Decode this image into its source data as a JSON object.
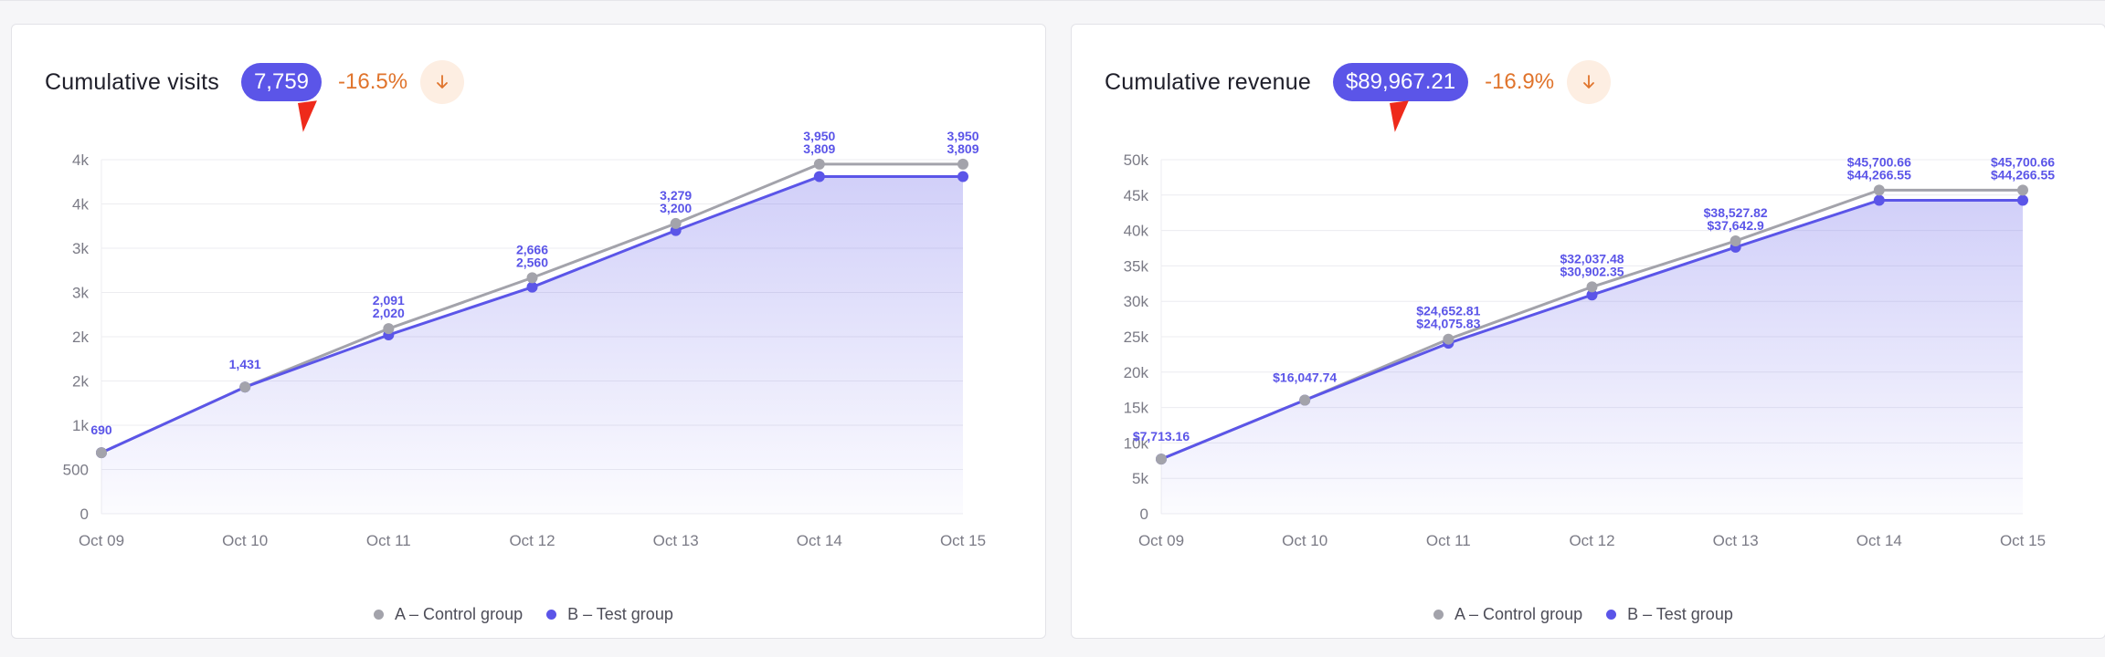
{
  "colors": {
    "control": "#a3a3ab",
    "test": "#5b55e8",
    "negative": "#e0742c",
    "pill": "#5b55e8"
  },
  "icons": {
    "change_direction": "arrow-down-icon"
  },
  "cards": [
    {
      "title": "Cumulative visits",
      "total": "7,759",
      "change": "-16.5%",
      "chart_index": 0
    },
    {
      "title": "Cumulative revenue",
      "total": "$89,967.21",
      "change": "-16.9%",
      "chart_index": 1
    }
  ],
  "chart_data": [
    {
      "type": "area",
      "title": "Cumulative visits",
      "categories": [
        "Oct 09",
        "Oct 10",
        "Oct 11",
        "Oct 12",
        "Oct 13",
        "Oct 14",
        "Oct 15"
      ],
      "y_tick_labels": [
        "0",
        "500",
        "1k",
        "2k",
        "2k",
        "3k",
        "3k",
        "4k",
        "4k"
      ],
      "ylim": [
        0,
        4000
      ],
      "grid": true,
      "legend": "bottom",
      "series": [
        {
          "name": "A – Control group",
          "values": [
            690,
            1431,
            2091,
            2666,
            3279,
            3950,
            3950
          ],
          "labels": [
            "",
            "",
            "2,091",
            "2,666",
            "3,279",
            "3,950",
            "3,950"
          ]
        },
        {
          "name": "B – Test group",
          "values": [
            690,
            1431,
            2020,
            2560,
            3200,
            3809,
            3809
          ],
          "labels": [
            "690",
            "1,431",
            "2,020",
            "2,560",
            "3,200",
            "3,809",
            "3,809"
          ]
        }
      ]
    },
    {
      "type": "area",
      "title": "Cumulative revenue",
      "categories": [
        "Oct 09",
        "Oct 10",
        "Oct 11",
        "Oct 12",
        "Oct 13",
        "Oct 14",
        "Oct 15"
      ],
      "y_tick_labels": [
        "0",
        "5k",
        "10k",
        "15k",
        "20k",
        "25k",
        "30k",
        "35k",
        "40k",
        "45k",
        "50k"
      ],
      "ylim": [
        0,
        50000
      ],
      "grid": true,
      "legend": "bottom",
      "series": [
        {
          "name": "A – Control group",
          "values": [
            7713.16,
            16047.74,
            24652.81,
            32037.48,
            38527.82,
            45700.66,
            45700.66
          ],
          "labels": [
            "",
            "",
            "$24,652.81",
            "$32,037.48",
            "$38,527.82",
            "$45,700.66",
            "$45,700.66"
          ]
        },
        {
          "name": "B – Test group",
          "values": [
            7713.16,
            16047.74,
            24075.83,
            30902.35,
            37642.9,
            44266.55,
            44266.55
          ],
          "labels": [
            "$7,713.16",
            "$16,047.74",
            "$24,075.83",
            "$30,902.35",
            "$37,642.9",
            "$44,266.55",
            "$44,266.55"
          ]
        }
      ]
    }
  ]
}
